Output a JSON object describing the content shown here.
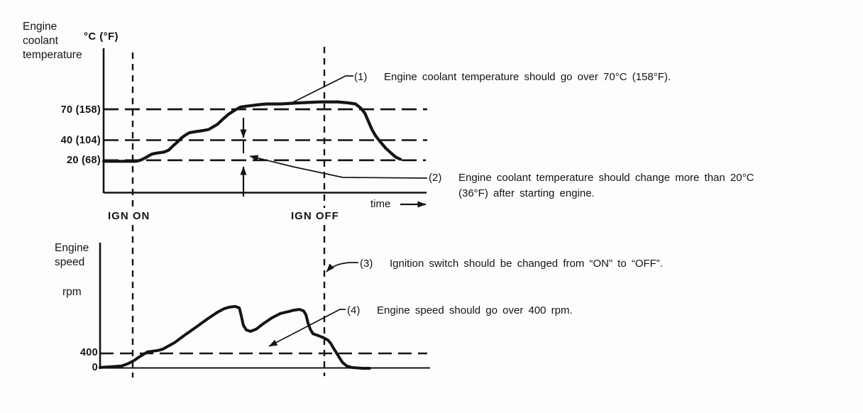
{
  "figure": {
    "background": "#fdfdfb",
    "ink": "#141414"
  },
  "labels": {
    "chart1_axis_title": "Engine coolant temperature",
    "chart1_unit": "°C (°F)",
    "chart1_yticks": [
      "70 (158)",
      "40 (104)",
      "20 (68)"
    ],
    "ign_on": "IGN ON",
    "ign_off": "IGN OFF",
    "time": "time",
    "chart2_axis_title": "Engine speed",
    "chart2_unit": "rpm",
    "chart2_yticks": [
      "400",
      "0"
    ]
  },
  "annotations": [
    {
      "num": "(1)",
      "text": "Engine coolant temperature should go over 70°C (158°F)."
    },
    {
      "num": "(2)",
      "text": "Engine coolant temperature should change more than 20°C (36°F) after starting engine."
    },
    {
      "num": "(3)",
      "text": "Ignition switch should be changed from “ON” to “OFF”."
    },
    {
      "num": "(4)",
      "text": "Engine speed should go over 400 rpm."
    }
  ],
  "chart_data": [
    {
      "type": "line",
      "title": "Engine coolant temperature",
      "ylabel": "°C (°F)",
      "xlabel": "time",
      "xrange": [
        0,
        10
      ],
      "yrange": [
        -12,
        128
      ],
      "grid": "dashed horizontal reference lines at 70, 40 and 20 °C",
      "yticks": [
        {
          "value": 70,
          "label": "70 (158)"
        },
        {
          "value": 40,
          "label": "40 (104)"
        },
        {
          "value": 20,
          "label": "20 (68)"
        }
      ],
      "events": [
        {
          "label": "IGN ON",
          "x": 0.92
        },
        {
          "label": "IGN OFF",
          "x": 6.86
        }
      ],
      "series": [
        {
          "name": "Engine coolant temperature (°C)",
          "points": [
            [
              0,
              19
            ],
            [
              0.99,
              19
            ],
            [
              1.14,
              20
            ],
            [
              1.27,
              22
            ],
            [
              1.38,
              24
            ],
            [
              1.49,
              26
            ],
            [
              1.65,
              27
            ],
            [
              1.87,
              28
            ],
            [
              2.02,
              30
            ],
            [
              2.15,
              34
            ],
            [
              2.29,
              38
            ],
            [
              2.42,
              42
            ],
            [
              2.55,
              45
            ],
            [
              2.66,
              47
            ],
            [
              2.86,
              48
            ],
            [
              3.08,
              49
            ],
            [
              3.25,
              50
            ],
            [
              3.52,
              55
            ],
            [
              3.69,
              60
            ],
            [
              3.87,
              65
            ],
            [
              4.07,
              69
            ],
            [
              4.24,
              72
            ],
            [
              4.46,
              73
            ],
            [
              4.73,
              74
            ],
            [
              5.05,
              75
            ],
            [
              5.49,
              75
            ],
            [
              6.04,
              76
            ],
            [
              6.7,
              77
            ],
            [
              7.25,
              77
            ],
            [
              7.58,
              76
            ],
            [
              7.8,
              75
            ],
            [
              7.96,
              71
            ],
            [
              8.09,
              66
            ],
            [
              8.2,
              58
            ],
            [
              8.31,
              50
            ],
            [
              8.42,
              44
            ],
            [
              8.57,
              38
            ],
            [
              8.73,
              32
            ],
            [
              8.9,
              27
            ],
            [
              9.05,
              23
            ],
            [
              9.19,
              21
            ]
          ]
        }
      ]
    },
    {
      "type": "line",
      "title": "Engine speed",
      "ylabel": "rpm",
      "xlabel": "time",
      "xrange": [
        0,
        10
      ],
      "yrange": [
        0,
        3333
      ],
      "grid": "dashed horizontal reference line at 400 rpm",
      "yticks": [
        {
          "value": 400,
          "label": "400"
        },
        {
          "value": 0,
          "label": "0"
        }
      ],
      "events": [
        {
          "label": "IGN ON",
          "x": 1.01
        },
        {
          "label": "IGN OFF",
          "x": 6.82
        }
      ],
      "series": [
        {
          "name": "Engine speed (rpm)",
          "points": [
            [
              0,
              20
            ],
            [
              0.65,
              60
            ],
            [
              0.86,
              130
            ],
            [
              1.03,
              210
            ],
            [
              1.18,
              300
            ],
            [
              1.29,
              360
            ],
            [
              1.44,
              440
            ],
            [
              1.61,
              460
            ],
            [
              1.76,
              480
            ],
            [
              1.89,
              510
            ],
            [
              2.26,
              690
            ],
            [
              2.58,
              900
            ],
            [
              2.9,
              1100
            ],
            [
              3.23,
              1310
            ],
            [
              3.55,
              1500
            ],
            [
              3.76,
              1600
            ],
            [
              3.91,
              1640
            ],
            [
              4.09,
              1660
            ],
            [
              4.22,
              1620
            ],
            [
              4.28,
              1410
            ],
            [
              4.34,
              1160
            ],
            [
              4.43,
              1030
            ],
            [
              4.56,
              990
            ],
            [
              4.73,
              1050
            ],
            [
              4.95,
              1200
            ],
            [
              5.2,
              1350
            ],
            [
              5.46,
              1470
            ],
            [
              5.7,
              1520
            ],
            [
              5.87,
              1560
            ],
            [
              6.04,
              1580
            ],
            [
              6.17,
              1540
            ],
            [
              6.24,
              1430
            ],
            [
              6.3,
              1220
            ],
            [
              6.37,
              1050
            ],
            [
              6.45,
              930
            ],
            [
              6.6,
              880
            ],
            [
              6.77,
              820
            ],
            [
              6.9,
              760
            ],
            [
              6.99,
              670
            ],
            [
              7.08,
              530
            ],
            [
              7.16,
              420
            ],
            [
              7.25,
              290
            ],
            [
              7.35,
              150
            ],
            [
              7.48,
              60
            ],
            [
              7.63,
              20
            ],
            [
              7.96,
              0
            ],
            [
              8.17,
              0
            ]
          ]
        }
      ]
    }
  ]
}
